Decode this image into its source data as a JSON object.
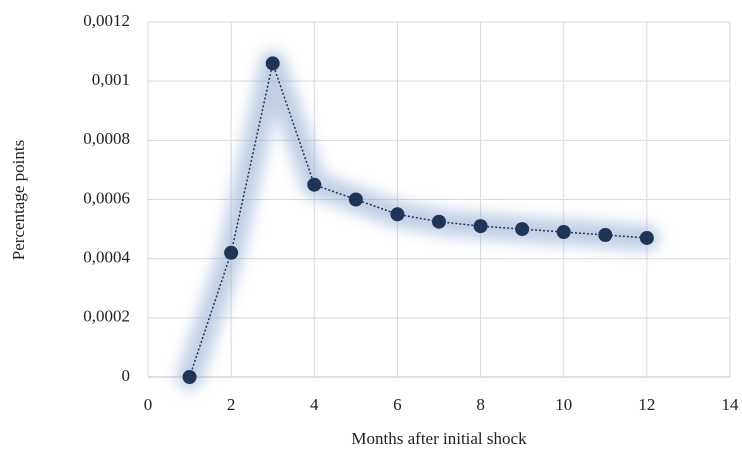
{
  "chart_data": {
    "type": "line",
    "x_label": "Months after initial shock",
    "y_label": "Percentage points",
    "x": [
      1,
      2,
      3,
      4,
      5,
      6,
      7,
      8,
      9,
      10,
      11,
      12
    ],
    "series": [
      {
        "color": "#1f3558",
        "values": [
          0,
          0.00042,
          0.00106,
          0.00065,
          0.0006,
          0.00055,
          0.000525,
          0.00051,
          0.0005,
          0.00049,
          0.00048,
          0.00047
        ]
      }
    ],
    "xlim": [
      0,
      14
    ],
    "xticks": [
      0,
      2,
      4,
      6,
      8,
      10,
      12,
      14
    ],
    "ylim": [
      0,
      0.0012
    ],
    "yticks": [
      0,
      {
        "value": 0.0002,
        "label": "0,0002"
      },
      {
        "value": 0.0004,
        "label": "0,0004"
      },
      {
        "value": 0.0006,
        "label": "0,0006"
      },
      {
        "value": 0.0008,
        "label": "0,0008"
      },
      {
        "value": 0.001,
        "label": "0,001"
      },
      {
        "value": 0.0012,
        "label": "0,0012"
      }
    ],
    "grid": true
  }
}
